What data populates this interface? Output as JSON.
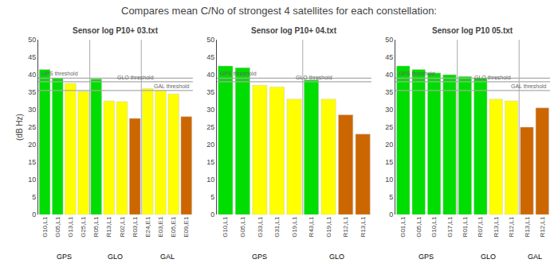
{
  "title": "Compares mean C/No of strongest 4 satellites for each constellation:",
  "chart_data": [
    {
      "type": "bar",
      "title": "Sensor log P10+ 03.txt",
      "categories": [
        "G10,L1",
        "G05,L1",
        "G13,L1",
        "G25,L1",
        "R05,L1",
        "R13,L1",
        "R02,L1",
        "R03,L1",
        "E24,E1",
        "E03,E1",
        "E05,E1",
        "E09,E1"
      ],
      "values": [
        41.5,
        39.0,
        37.5,
        35.2,
        38.8,
        32.5,
        32.3,
        27.5,
        36.0,
        35.5,
        34.5,
        28.0
      ],
      "colors": [
        "#00dd00",
        "#00dd00",
        "#ffff00",
        "#ffff00",
        "#00dd00",
        "#ffff00",
        "#ffff00",
        "#cc6600",
        "#ffff00",
        "#ffff00",
        "#ffff00",
        "#cc6600"
      ],
      "groups": [
        "GPS",
        "GPS",
        "GPS",
        "GPS",
        "GLO",
        "GLO",
        "GLO",
        "GLO",
        "GAL",
        "GAL",
        "GAL",
        "GAL"
      ],
      "thresholds": [
        {
          "value": 39.0,
          "label": "GPS threshold"
        },
        {
          "value": 38.0,
          "label": "GLO threshold"
        },
        {
          "value": 35.5,
          "label": "GAL threshold"
        }
      ],
      "ylim": [
        0,
        50
      ],
      "yticks": [
        0,
        5,
        10,
        15,
        20,
        25,
        30,
        35,
        40,
        45,
        50
      ],
      "ylabel": "(dB Hz)",
      "grid": false
    },
    {
      "type": "bar",
      "title": "Sensor log P10+ 04.txt",
      "categories": [
        "G10,L1",
        "G05,L1",
        "G33,L1",
        "G31,L1",
        "G19,L1",
        "R43,L1",
        "G19,L1",
        "R12,L1",
        "R13,L1"
      ],
      "values": [
        42.5,
        42.0,
        37.0,
        36.5,
        33.0,
        38.5,
        33.0,
        28.5,
        23.0
      ],
      "colors": [
        "#00dd00",
        "#00dd00",
        "#ffff00",
        "#ffff00",
        "#ffff00",
        "#00dd00",
        "#ffff00",
        "#cc6600",
        "#cc6600"
      ],
      "groups": [
        "GPS",
        "GPS",
        "GPS",
        "GPS",
        "GPS",
        "GLO",
        "GLO",
        "GLO",
        "GLO"
      ],
      "thresholds": [
        {
          "value": 39.0,
          "label": "GPS threshold"
        },
        {
          "value": 38.0,
          "label": "GLO threshold"
        }
      ],
      "ylim": [
        0,
        50
      ],
      "yticks": [
        0,
        5,
        10,
        15,
        20,
        25,
        30,
        35,
        40,
        45,
        50
      ],
      "grid": false
    },
    {
      "type": "bar",
      "title": "Sensor log P10 05.txt",
      "categories": [
        "G01,L1",
        "G05,L1",
        "G10,L1",
        "G17,L1",
        "R01,L1",
        "R07,L1",
        "R13,L1",
        "R12,L1",
        "R13,L1",
        "R12,L1"
      ],
      "values": [
        42.5,
        41.5,
        40.5,
        40.0,
        39.5,
        39.0,
        33.0,
        32.5,
        25.0,
        30.5
      ],
      "colors": [
        "#00dd00",
        "#00dd00",
        "#00dd00",
        "#00dd00",
        "#00dd00",
        "#00dd00",
        "#ffff00",
        "#ffff00",
        "#cc6600",
        "#cc6600"
      ],
      "groups": [
        "GPS",
        "GPS",
        "GPS",
        "GPS",
        "GLO",
        "GLO",
        "GLO",
        "GLO",
        "GAL",
        "GAL"
      ],
      "thresholds": [
        {
          "value": 39.0,
          "label": "GPS threshold"
        },
        {
          "value": 38.0,
          "label": "GLO threshold"
        },
        {
          "value": 35.5,
          "label": "GAL threshold"
        }
      ],
      "ylim": [
        0,
        50
      ],
      "yticks": [
        0,
        5,
        10,
        15,
        20,
        25,
        30,
        35,
        40,
        45,
        50
      ],
      "grid": false
    }
  ]
}
